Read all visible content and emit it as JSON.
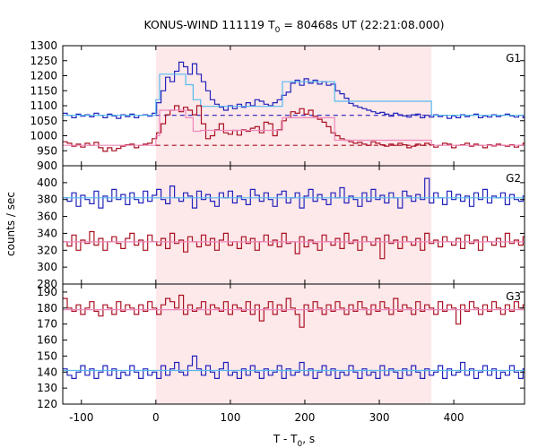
{
  "chart_data": {
    "type": "line",
    "title_main": "KONUS-WIND 111119 T",
    "title_sub": "0",
    "title_rest": " = 80468s UT (22:21:08.000)",
    "xlabel_main": "T - T",
    "xlabel_sub": "0",
    "xlabel_rest": ", s",
    "ylabel": "counts / sec",
    "xlim": [
      -125,
      495
    ],
    "x_ticks": [
      -100,
      0,
      100,
      200,
      300,
      400
    ],
    "highlight_interval": [
      0,
      370
    ],
    "highlight_color": "#fde8ea",
    "colors": {
      "blue": "#2222bb",
      "red": "#aa1122",
      "light_blue": "#55bbee",
      "pink": "#ee88bb"
    },
    "panels": [
      {
        "label": "G1",
        "ylim": [
          900,
          1300
        ],
        "y_ticks": [
          900,
          950,
          1000,
          1050,
          1100,
          1150,
          1200,
          1250,
          1300
        ],
        "series": [
          {
            "color": "blue",
            "step": 6,
            "x_start": -125,
            "values": [
              1075,
              1068,
              1060,
              1072,
              1065,
              1070,
              1063,
              1075,
              1068,
              1060,
              1072,
              1066,
              1058,
              1070,
              1064,
              1072,
              1060,
              1068,
              1070,
              1065,
              1075,
              1110,
              1150,
              1195,
              1180,
              1215,
              1245,
              1230,
              1205,
              1240,
              1205,
              1180,
              1150,
              1120,
              1105,
              1095,
              1085,
              1100,
              1090,
              1105,
              1095,
              1110,
              1100,
              1120,
              1115,
              1105,
              1100,
              1110,
              1120,
              1135,
              1145,
              1175,
              1185,
              1168,
              1190,
              1175,
              1185,
              1172,
              1180,
              1168,
              1172,
              1150,
              1140,
              1125,
              1108,
              1100,
              1095,
              1090,
              1085,
              1080,
              1075,
              1078,
              1072,
              1065,
              1075,
              1070,
              1066,
              1062,
              1070,
              1072,
              1060,
              1068,
              1062,
              1070,
              1064,
              1068,
              1058,
              1066,
              1060,
              1070,
              1064,
              1068,
              1072,
              1060,
              1066,
              1062,
              1070,
              1064,
              1068,
              1072,
              1066,
              1062,
              1068,
              1060
            ]
          },
          {
            "color": "light_blue",
            "points": [
              [
                -125,
                1068
              ],
              [
                0,
                1068
              ],
              [
                0,
                1120
              ],
              [
                5,
                1120
              ],
              [
                5,
                1205
              ],
              [
                40,
                1205
              ],
              [
                40,
                1170
              ],
              [
                50,
                1170
              ],
              [
                50,
                1120
              ],
              [
                60,
                1120
              ],
              [
                60,
                1098
              ],
              [
                170,
                1098
              ],
              [
                170,
                1180
              ],
              [
                240,
                1180
              ],
              [
                240,
                1115
              ],
              [
                370,
                1115
              ],
              [
                370,
                1068
              ],
              [
                495,
                1068
              ]
            ]
          },
          {
            "color": "blue",
            "dashed": true,
            "points": [
              [
                0,
                1068
              ],
              [
                370,
                1068
              ]
            ]
          },
          {
            "color": "red",
            "step": 6,
            "x_start": -125,
            "values": [
              980,
              975,
              965,
              972,
              962,
              975,
              968,
              978,
              960,
              948,
              960,
              950,
              958,
              965,
              970,
              972,
              960,
              968,
              972,
              975,
              990,
              1010,
              1040,
              1070,
              1085,
              1100,
              1080,
              1095,
              1085,
              1070,
              1100,
              1040,
              990,
              1000,
              1020,
              1040,
              1010,
              1005,
              1018,
              1002,
              1020,
              1015,
              1025,
              1030,
              1010,
              1045,
              1040,
              1000,
              1020,
              1050,
              1060,
              1080,
              1075,
              1090,
              1072,
              1085,
              1065,
              1055,
              1045,
              1030,
              1010,
              1000,
              990,
              985,
              980,
              975,
              978,
              972,
              968,
              980,
              975,
              970,
              965,
              972,
              968,
              975,
              970,
              960,
              965,
              972,
              968,
              975,
              970,
              962,
              968,
              975,
              972,
              960,
              968,
              970,
              975,
              965,
              972,
              968,
              960,
              970,
              966,
              972,
              968,
              965,
              970,
              962,
              968,
              975
            ]
          },
          {
            "color": "pink",
            "points": [
              [
                -125,
                968
              ],
              [
                0,
                968
              ],
              [
                0,
                1000
              ],
              [
                5,
                1000
              ],
              [
                5,
                1085
              ],
              [
                40,
                1085
              ],
              [
                40,
                1060
              ],
              [
                50,
                1060
              ],
              [
                50,
                1015
              ],
              [
                60,
                1015
              ],
              [
                60,
                1018
              ],
              [
                170,
                1018
              ],
              [
                170,
                1060
              ],
              [
                240,
                1060
              ],
              [
                240,
                985
              ],
              [
                370,
                985
              ],
              [
                370,
                968
              ],
              [
                495,
                968
              ]
            ]
          },
          {
            "color": "red",
            "dashed": true,
            "points": [
              [
                0,
                968
              ],
              [
                370,
                968
              ]
            ]
          }
        ]
      },
      {
        "label": "G2",
        "ylim": [
          280,
          420
        ],
        "y_ticks": [
          280,
          300,
          320,
          340,
          360,
          380,
          400
        ],
        "series": [
          {
            "color": "blue",
            "step": 6,
            "x_start": -125,
            "values": [
              382,
              378,
              388,
              372,
              385,
              380,
              375,
              390,
              370,
              384,
              378,
              392,
              380,
              386,
              374,
              388,
              380,
              376,
              390,
              378,
              385,
              392,
              380,
              375,
              396,
              382,
              378,
              388,
              384,
              370,
              390,
              380,
              386,
              378,
              372,
              388,
              382,
              390,
              376,
              384,
              380,
              374,
              392,
              385,
              378,
              388,
              380,
              372,
              386,
              390,
              376,
              382,
              388,
              370,
              384,
              392,
              378,
              386,
              380,
              374,
              388,
              382,
              394,
              376,
              384,
              380,
              372,
              388,
              378,
              392,
              380,
              385,
              376,
              388,
              382,
              370,
              390,
              384,
              378,
              386,
              380,
              405,
              376,
              388,
              382,
              374,
              390,
              380,
              386,
              378,
              384,
              372,
              388,
              380,
              392,
              376,
              384,
              382,
              388,
              374,
              386,
              380,
              378,
              384
            ]
          },
          {
            "color": "light_blue",
            "points": [
              [
                -125,
                382
              ],
              [
                495,
                382
              ]
            ]
          },
          {
            "color": "red",
            "step": 6,
            "x_start": -125,
            "values": [
              330,
              325,
              338,
              320,
              332,
              328,
              342,
              326,
              334,
              320,
              330,
              336,
              328,
              322,
              334,
              340,
              326,
              332,
              320,
              338,
              330,
              326,
              334,
              322,
              340,
              328,
              332,
              318,
              336,
              330,
              324,
              338,
              326,
              334,
              320,
              332,
              340,
              326,
              330,
              322,
              336,
              328,
              334,
              320,
              330,
              338,
              326,
              332,
              324,
              340,
              328,
              330,
              316,
              336,
              324,
              332,
              328,
              320,
              338,
              330,
              326,
              334,
              322,
              340,
              328,
              332,
              320,
              336,
              330,
              326,
              334,
              310,
              338,
              328,
              332,
              322,
              336,
              330,
              326,
              334,
              320,
              340,
              328,
              332,
              324,
              336,
              330,
              326,
              334,
              322,
              338,
              328,
              332,
              320,
              336,
              330,
              326,
              334,
              324,
              340,
              328,
              332,
              326,
              336
            ]
          },
          {
            "color": "pink",
            "points": [
              [
                -125,
                330
              ],
              [
                495,
                330
              ]
            ]
          }
        ]
      },
      {
        "label": "G3",
        "ylim": [
          120,
          195
        ],
        "y_ticks": [
          120,
          130,
          140,
          150,
          160,
          170,
          180,
          190
        ],
        "series": [
          {
            "color": "red",
            "step": 6,
            "x_start": -125,
            "values": [
              186,
              180,
              178,
              182,
              176,
              180,
              184,
              178,
              175,
              182,
              180,
              176,
              184,
              178,
              182,
              180,
              176,
              182,
              178,
              184,
              180,
              176,
              182,
              186,
              184,
              180,
              188,
              176,
              182,
              178,
              180,
              184,
              176,
              182,
              180,
              178,
              184,
              176,
              182,
              180,
              178,
              184,
              176,
              182,
              172,
              180,
              184,
              176,
              182,
              178,
              186,
              180,
              176,
              168,
              182,
              178,
              184,
              180,
              176,
              182,
              178,
              184,
              180,
              176,
              182,
              178,
              184,
              180,
              176,
              182,
              178,
              184,
              180,
              176,
              186,
              178,
              182,
              180,
              176,
              184,
              178,
              182,
              180,
              176,
              184,
              178,
              182,
              180,
              170,
              182,
              178,
              184,
              180,
              176,
              182,
              178,
              184,
              180,
              176,
              182,
              178,
              184,
              180,
              182
            ]
          },
          {
            "color": "pink",
            "points": [
              [
                -125,
                179
              ],
              [
                495,
                179
              ]
            ]
          },
          {
            "color": "blue",
            "step": 6,
            "x_start": -125,
            "values": [
              142,
              138,
              136,
              140,
              144,
              138,
              142,
              136,
              140,
              144,
              138,
              142,
              136,
              140,
              138,
              144,
              140,
              136,
              142,
              138,
              140,
              136,
              144,
              138,
              142,
              146,
              140,
              138,
              144,
              150,
              142,
              138,
              144,
              140,
              136,
              142,
              146,
              138,
              140,
              136,
              142,
              138,
              144,
              140,
              136,
              142,
              138,
              140,
              144,
              136,
              142,
              138,
              140,
              146,
              138,
              142,
              136,
              140,
              144,
              138,
              142,
              136,
              140,
              138,
              144,
              140,
              136,
              142,
              138,
              140,
              136,
              144,
              138,
              142,
              140,
              136,
              142,
              138,
              144,
              140,
              136,
              142,
              138,
              140,
              144,
              136,
              142,
              138,
              140,
              146,
              138,
              142,
              136,
              140,
              144,
              138,
              142,
              136,
              140,
              138,
              144,
              140,
              136,
              142
            ]
          },
          {
            "color": "light_blue",
            "points": [
              [
                -125,
                141
              ],
              [
                495,
                141
              ]
            ]
          }
        ]
      }
    ]
  }
}
